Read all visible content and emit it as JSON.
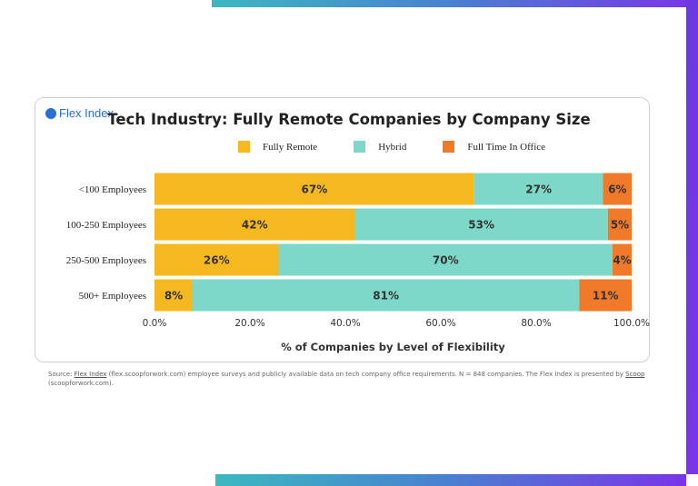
{
  "brand": {
    "logo_text": "Flex Index"
  },
  "colors": {
    "fully_remote": "#F5B820",
    "hybrid": "#7ED8C9",
    "office": "#F07A2A"
  },
  "chart_data": {
    "type": "bar",
    "orientation": "horizontal-stacked",
    "title": "Tech Industry: Fully Remote Companies by Company Size",
    "xlabel": "% of Companies by Level of Flexibility",
    "ylabel": "",
    "categories": [
      "<100 Employees",
      "100-250 Employees",
      "250-500 Employees",
      "500+ Employees"
    ],
    "series": [
      {
        "name": "Fully Remote",
        "values": [
          67,
          42,
          26,
          8
        ]
      },
      {
        "name": "Hybrid",
        "values": [
          27,
          53,
          70,
          81
        ]
      },
      {
        "name": "Full Time In Office",
        "values": [
          6,
          5,
          4,
          11
        ]
      }
    ],
    "xlim": [
      0,
      100
    ],
    "xticks": [
      "0.0%",
      "20.0%",
      "40.0%",
      "60.0%",
      "80.0%",
      "100.0%"
    ],
    "legend": "top",
    "grid": false
  },
  "source": {
    "prefix": "Source: ",
    "link1": "Flex Index",
    "middle": " (flex.scoopforwork.com) employee surveys and publicly available data on tech company office requirements. N = 848 companies. The Flex Index is presented by ",
    "link2": "Scoop",
    "suffix": " (scoopforwork.com)."
  }
}
